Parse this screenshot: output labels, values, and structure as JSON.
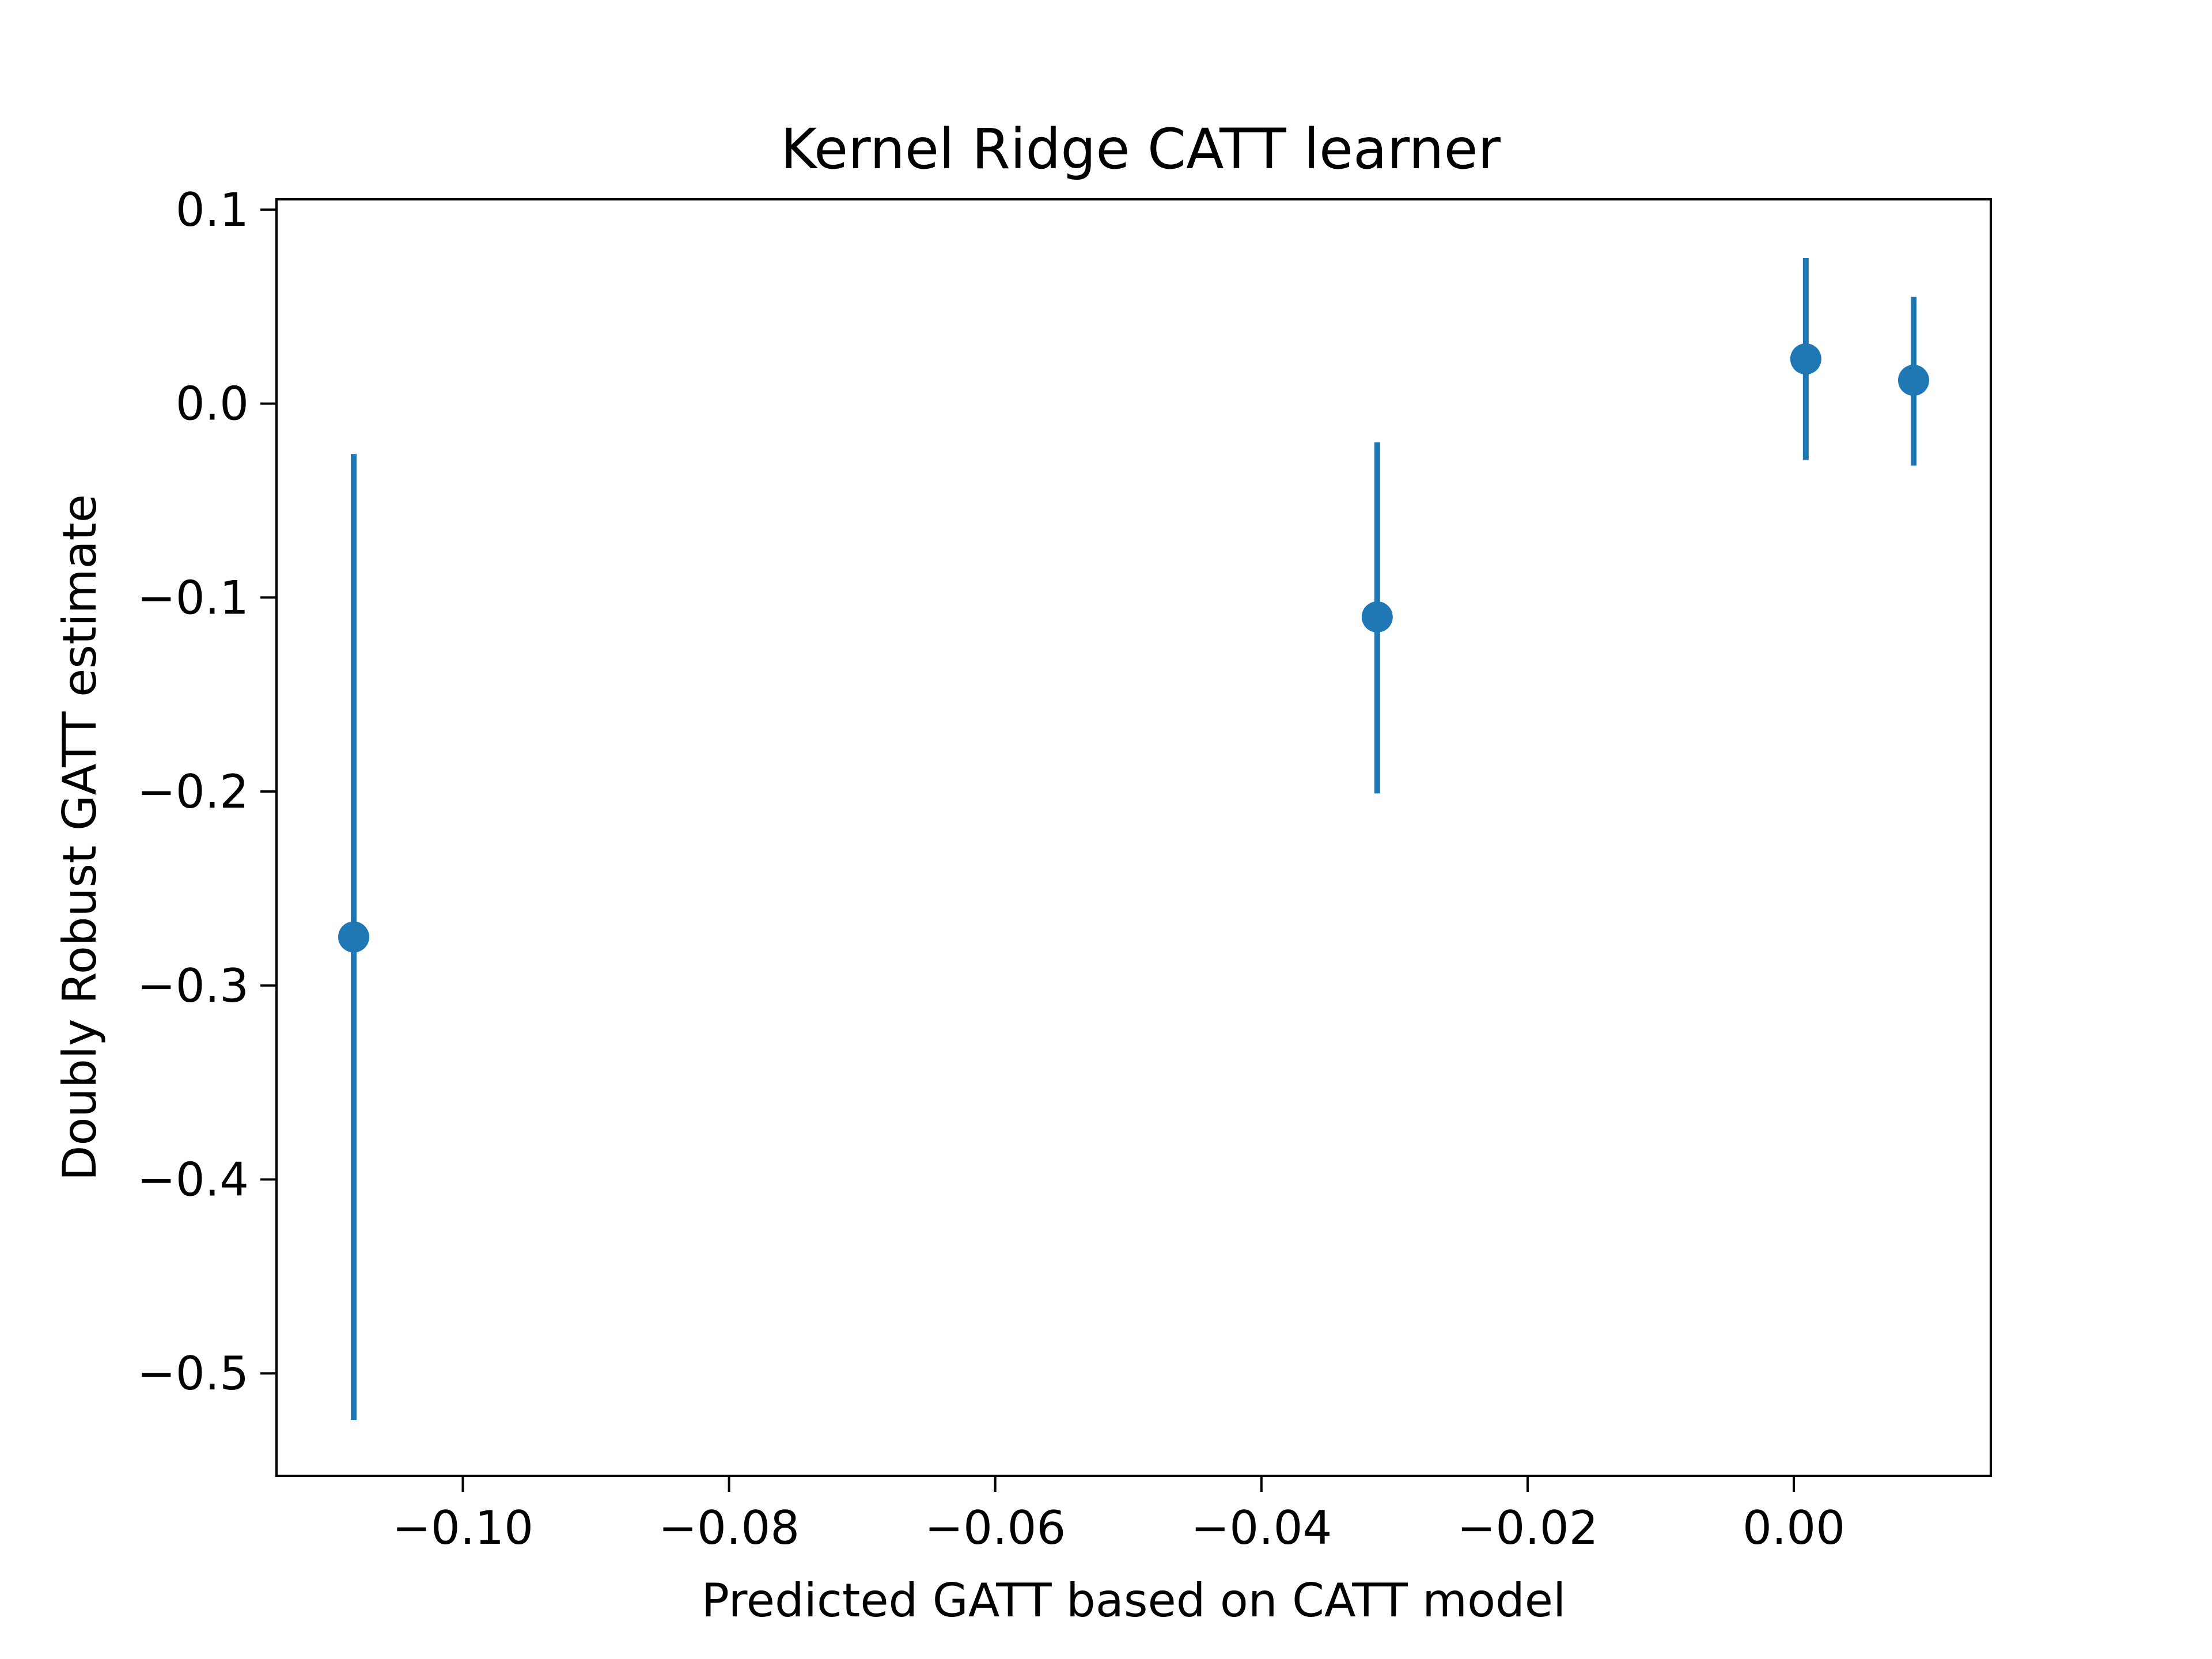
{
  "chart_data": {
    "type": "scatter",
    "title": "Kernel Ridge CATT learner",
    "xlabel": "Predicted GATT based on CATT model",
    "ylabel": "Doubly Robust GATT estimate",
    "xlim": [
      -0.114,
      0.0148
    ],
    "ylim": [
      -0.5528,
      0.1053
    ],
    "xticks": [
      -0.1,
      -0.08,
      -0.06,
      -0.04,
      -0.02,
      0.0
    ],
    "xtick_labels": [
      "−0.10",
      "−0.08",
      "−0.06",
      "−0.04",
      "−0.02",
      "0.00"
    ],
    "yticks": [
      0.1,
      0.0,
      -0.1,
      -0.2,
      -0.3,
      -0.4,
      -0.5
    ],
    "ytick_labels": [
      "0.1",
      "0.0",
      "−0.1",
      "−0.2",
      "−0.3",
      "−0.4",
      "−0.5"
    ],
    "grid": false,
    "color": "#1f77b4",
    "points": [
      {
        "x": -0.1082,
        "y": -0.275,
        "y_low": -0.524,
        "y_high": -0.026
      },
      {
        "x": -0.0313,
        "y": -0.11,
        "y_low": -0.201,
        "y_high": -0.02
      },
      {
        "x": 0.0009,
        "y": 0.023,
        "y_low": -0.029,
        "y_high": 0.075
      },
      {
        "x": 0.009,
        "y": 0.012,
        "y_low": -0.032,
        "y_high": 0.055
      }
    ]
  }
}
